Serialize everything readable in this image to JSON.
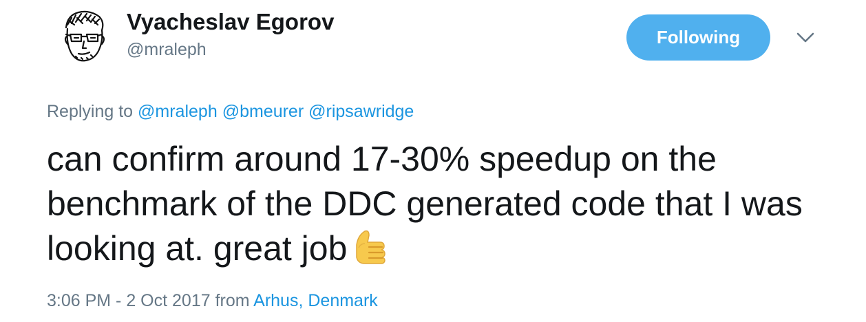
{
  "author": {
    "display_name": "Vyacheslav Egorov",
    "handle": "@mraleph"
  },
  "actions": {
    "follow_label": "Following",
    "menu_icon": "chevron-down-icon"
  },
  "reply": {
    "prefix": "Replying to",
    "mentions": [
      "@mraleph",
      "@bmeurer",
      "@ripsawridge"
    ]
  },
  "tweet": {
    "text": "can confirm around 17-30% speedup on the benchmark of the DDC generated code that I was looking at. great job",
    "emoji": "thumbs-up-icon"
  },
  "meta": {
    "timestamp": "3:06 PM - 2 Oct 2017",
    "from_word": "from",
    "location": "Arhus, Denmark"
  },
  "colors": {
    "follow_button": "#50b0ee",
    "link": "#1b95e0",
    "secondary_text": "#657786",
    "primary_text": "#14171a"
  }
}
